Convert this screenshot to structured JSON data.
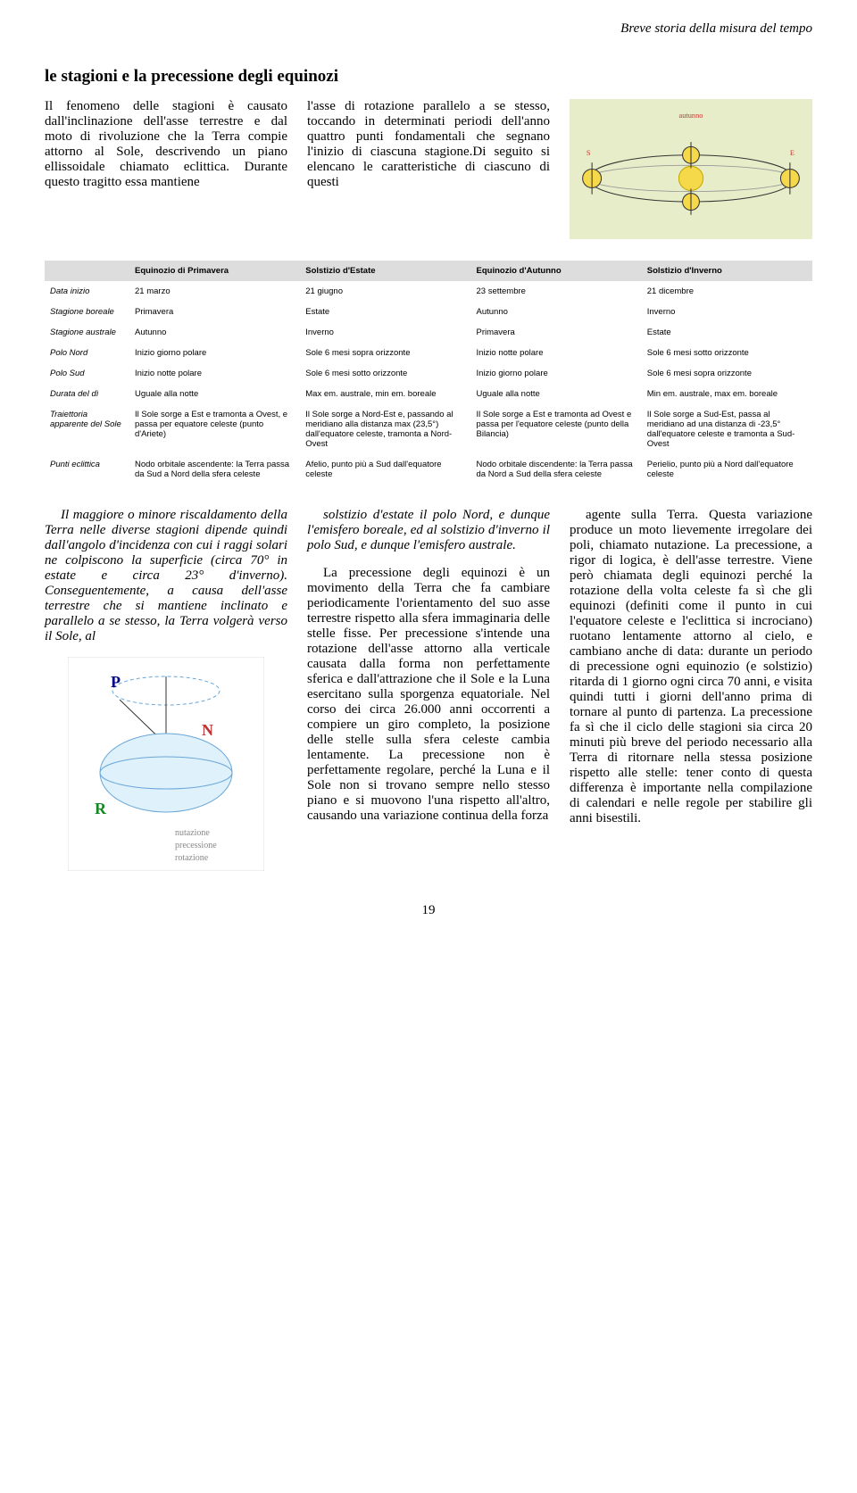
{
  "page": {
    "running_head": "Breve storia della misura del tempo",
    "section_title": "le stagioni e la precessione degli equinozi",
    "page_number": "19"
  },
  "intro": {
    "col1": "Il fenomeno delle stagioni è causato dall'inclinazione dell'asse terrestre e dal moto di rivoluzione che la Terra compie attorno al Sole, descrivendo un piano ellissoidale chiamato eclittica. Durante questo tragitto essa mantiene",
    "col2": "l'asse di rotazione parallelo a se stesso, toccando in determinati periodi dell'anno quattro punti fondamentali che segnano l'inizio di ciascuna stagione.Di seguito si elencano le caratteristiche di ciascuno di questi"
  },
  "orbit_diagram": {
    "background": "#e7edc8",
    "sun_color": "#f6d94a",
    "earth_color": "#f6d94a",
    "earth_stroke": "#333333",
    "orbit_color": "#333333",
    "equator_color": "#999999",
    "label_color": "#cc3333"
  },
  "table": {
    "headers": [
      "",
      "Equinozio di Primavera",
      "Solstizio d'Estate",
      "Equinozio d'Autunno",
      "Solstizio d'Inverno"
    ],
    "rows": [
      {
        "label": "Data inizio",
        "cells": [
          "21 marzo",
          "21 giugno",
          "23 settembre",
          "21 dicembre"
        ]
      },
      {
        "label": "Stagione boreale",
        "cells": [
          "Primavera",
          "Estate",
          "Autunno",
          "Inverno"
        ]
      },
      {
        "label": "Stagione australe",
        "cells": [
          "Autunno",
          "Inverno",
          "Primavera",
          "Estate"
        ]
      },
      {
        "label": "Polo Nord",
        "cells": [
          "Inizio giorno polare",
          "Sole 6 mesi sopra orizzonte",
          "Inizio notte polare",
          "Sole 6 mesi sotto orizzonte"
        ]
      },
      {
        "label": "Polo Sud",
        "cells": [
          "Inizio notte polare",
          "Sole 6 mesi sotto orizzonte",
          "Inizio giorno polare",
          "Sole 6 mesi sopra orizzonte"
        ]
      },
      {
        "label": "Durata del dì",
        "cells": [
          "Uguale alla notte",
          "Max em. australe, min em. boreale",
          "Uguale alla notte",
          "Min em. australe, max em. boreale"
        ]
      },
      {
        "label": "Traiettoria apparente del Sole",
        "cells": [
          "Il Sole sorge a Est e tramonta a Ovest, e passa per equatore celeste (punto d'Ariete)",
          "Il Sole sorge a Nord-Est e, passando al meridiano alla distanza max (23,5°) dall'equatore celeste, tramonta a Nord-Ovest",
          "Il Sole sorge a Est e tramonta ad Ovest e passa per l'equatore celeste (punto della Bilancia)",
          "Il Sole sorge a Sud-Est, passa al meridiano ad una distanza di -23,5° dall'equatore celeste e tramonta a Sud-Ovest"
        ]
      },
      {
        "label": "Punti eclittica",
        "cells": [
          "Nodo orbitale ascendente: la Terra passa da Sud a Nord della sfera celeste",
          "Afelio, punto più a Sud dall'equatore celeste",
          "Nodo orbitale discendente: la Terra passa da Nord a Sud della sfera celeste",
          "Perielio, punto più a Nord dall'equatore celeste"
        ]
      }
    ],
    "header_bg": "#dddddd",
    "font_size": 9.5
  },
  "body": {
    "col1_p1": "Il maggiore o minore riscaldamento della Terra nelle diverse stagioni dipende quindi dall'angolo d'incidenza con cui i raggi solari ne colpiscono la superficie (circa 70° in estate e circa 23° d'inverno). Conseguentemente, a causa dell'asse terrestre che si mantiene inclinato e parallelo a se stesso, la Terra volgerà verso il Sole, al",
    "col2_p1": "solstizio d'estate il polo Nord, e dunque l'emisfero boreale, ed al solstizio d'inverno il polo Sud, e dunque l'emisfero australe.",
    "col2_p2": "La precessione degli equinozi è un movimento della Terra che fa cambiare periodicamente l'orientamento del suo asse terrestre rispetto alla sfera immaginaria delle stelle fisse. Per precessione s'intende una rotazione dell'asse attorno alla verticale causata dalla forma non perfettamente sferica e dall'attrazione che il Sole e la Luna esercitano sulla sporgenza equatoriale. Nel corso dei circa 26.000 anni occorrenti a compiere un giro completo, la posizione delle stelle sulla sfera celeste cambia lentamente. La precessione non è perfettamente regolare, perché la Luna e il Sole non si trovano sempre nello stesso piano e si muovono l'una rispetto all'altro, causando una variazione continua della forza",
    "col3_p1": "agente sulla Terra. Questa variazione produce un moto lievemente irregolare dei poli, chiamato nutazione. La precessione, a rigor di logica, è dell'asse terrestre. Viene però chiamata degli equinozi perché la rotazione della volta celeste fa sì che gli equinozi (definiti come il punto in cui l'equatore celeste e l'eclittica si incrociano) ruotano lentamente attorno al cielo, e cambiano anche di data: durante un periodo di precessione ogni equinozio (e solstizio) ritarda di 1 giorno ogni circa 70 anni, e visita quindi tutti i giorni dell'anno prima di tornare al punto di partenza. La precessione fa sì che il ciclo delle stagioni sia circa 20 minuti più breve del periodo necessario alla Terra di ritornare nella stessa posizione rispetto alle stelle: tener conto di questa differenza è importante nella compilazione di calendari e nelle regole per stabilire gli anni bisestili."
  },
  "precession_diagram": {
    "background": "#ffffff",
    "circle_stroke": "#6aa6d8",
    "dash_color": "#6aa6d8",
    "axis_color": "#333333",
    "labels": {
      "P": "P",
      "N": "N",
      "R": "R"
    },
    "P_color": "#000088",
    "N_color": "#bb3333",
    "R_color": "#118822",
    "legend": [
      "nutazione",
      "precessione",
      "rotazione"
    ]
  }
}
